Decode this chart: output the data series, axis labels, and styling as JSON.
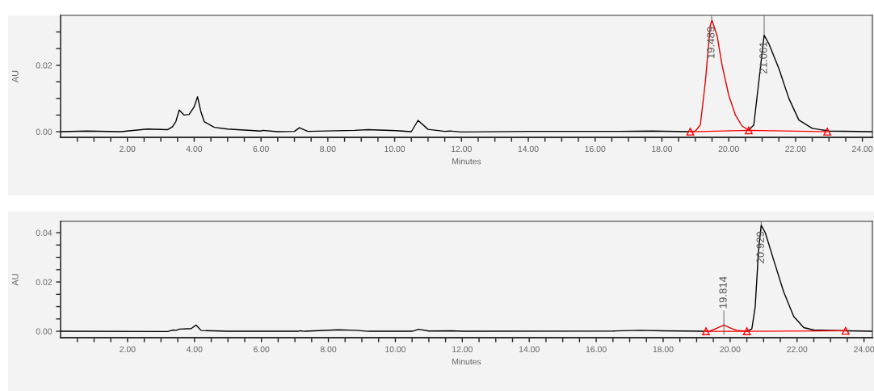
{
  "chart_data": [
    {
      "type": "line",
      "xlabel": "Minutes",
      "ylabel": "AU",
      "xlim": [
        0,
        24.3
      ],
      "ylim": [
        -0.0017,
        0.035
      ],
      "xticks": [
        {
          "value": 0.5,
          "label": null
        },
        {
          "value": 1.0,
          "label": null
        },
        {
          "value": 1.5,
          "label": null
        },
        {
          "value": 2.0,
          "label": "2.00"
        },
        {
          "value": 2.5,
          "label": null
        },
        {
          "value": 3.0,
          "label": null
        },
        {
          "value": 3.5,
          "label": null
        },
        {
          "value": 4.0,
          "label": "4.00"
        },
        {
          "value": 4.5,
          "label": null
        },
        {
          "value": 5.0,
          "label": null
        },
        {
          "value": 5.5,
          "label": null
        },
        {
          "value": 6.0,
          "label": "6.00"
        },
        {
          "value": 6.5,
          "label": null
        },
        {
          "value": 7.0,
          "label": null
        },
        {
          "value": 7.5,
          "label": null
        },
        {
          "value": 8.0,
          "label": "8.00"
        },
        {
          "value": 8.5,
          "label": null
        },
        {
          "value": 9.0,
          "label": null
        },
        {
          "value": 9.5,
          "label": null
        },
        {
          "value": 10.0,
          "label": "10.00"
        },
        {
          "value": 10.5,
          "label": null
        },
        {
          "value": 11.0,
          "label": null
        },
        {
          "value": 11.5,
          "label": null
        },
        {
          "value": 12.0,
          "label": "12.00"
        },
        {
          "value": 12.5,
          "label": null
        },
        {
          "value": 13.0,
          "label": null
        },
        {
          "value": 13.5,
          "label": null
        },
        {
          "value": 14.0,
          "label": "14.00"
        },
        {
          "value": 14.5,
          "label": null
        },
        {
          "value": 15.0,
          "label": null
        },
        {
          "value": 15.5,
          "label": null
        },
        {
          "value": 16.0,
          "label": "16.00"
        },
        {
          "value": 16.5,
          "label": null
        },
        {
          "value": 17.0,
          "label": null
        },
        {
          "value": 17.5,
          "label": null
        },
        {
          "value": 18.0,
          "label": "18.00"
        },
        {
          "value": 18.5,
          "label": null
        },
        {
          "value": 19.0,
          "label": null
        },
        {
          "value": 19.5,
          "label": null
        },
        {
          "value": 20.0,
          "label": "20.00"
        },
        {
          "value": 20.5,
          "label": null
        },
        {
          "value": 21.0,
          "label": null
        },
        {
          "value": 21.5,
          "label": null
        },
        {
          "value": 22.0,
          "label": "22.00"
        },
        {
          "value": 22.5,
          "label": null
        },
        {
          "value": 23.0,
          "label": null
        },
        {
          "value": 23.5,
          "label": null
        },
        {
          "value": 24.0,
          "label": "24.00"
        }
      ],
      "yticks": [
        {
          "value": 0.0,
          "label": "0.00"
        },
        {
          "value": 0.005,
          "label": null
        },
        {
          "value": 0.01,
          "label": null
        },
        {
          "value": 0.015,
          "label": null
        },
        {
          "value": 0.02,
          "label": "0.02"
        },
        {
          "value": 0.025,
          "label": null
        },
        {
          "value": 0.03,
          "label": null
        }
      ],
      "grid": false,
      "legend": false,
      "series": [
        {
          "color": "#000000",
          "x": [
            0,
            0.8,
            1.8,
            2.6,
            3.2,
            3.35,
            3.45,
            3.55,
            3.7,
            3.85,
            4.0,
            4.1,
            4.2,
            4.3,
            4.6,
            5.0,
            6.0,
            6.05,
            6.5,
            7.0,
            7.15,
            7.4,
            8.8,
            9.2,
            10.05,
            10.5,
            10.7,
            11.0,
            11.5,
            11.65,
            12.0,
            14.0,
            16.7,
            17.7,
            18.8,
            19.5,
            20.6,
            20.75,
            20.9,
            21.06,
            21.2,
            21.5,
            21.8,
            22.1,
            22.5,
            23.0,
            24.3
          ],
          "values": [
            0.0,
            0.0002,
            0.0,
            0.0008,
            0.0006,
            0.0015,
            0.003,
            0.0065,
            0.005,
            0.0052,
            0.0075,
            0.0105,
            0.006,
            0.003,
            0.0013,
            0.0008,
            0.0002,
            0.0004,
            0.0,
            0.0001,
            0.0012,
            0.0001,
            0.0004,
            0.0006,
            0.0003,
            0.0,
            0.0034,
            0.0007,
            0.0001,
            0.0002,
            -0.0001,
            0.0001,
            0.0001,
            0.0002,
            0.0,
            null,
            0.0005,
            0.002,
            0.015,
            0.029,
            0.0265,
            0.019,
            0.01,
            0.0035,
            0.001,
            0.0002,
            0.0
          ]
        },
        {
          "color": "#e00000",
          "x": [
            18.85,
            19.0,
            19.15,
            19.3,
            19.45,
            19.5,
            19.65,
            19.8,
            20.0,
            20.2,
            20.4,
            20.6
          ],
          "values": [
            0.0,
            0.0002,
            0.002,
            0.015,
            0.032,
            0.0335,
            0.029,
            0.02,
            0.011,
            0.005,
            0.0017,
            0.0005
          ]
        },
        {
          "color": "#ff0000",
          "marker": "triangle",
          "x": [
            18.85,
            20.6,
            22.95
          ],
          "values": [
            0.0,
            0.0004,
            0.0
          ]
        }
      ],
      "annotations": [
        {
          "text": "19.489",
          "x": 19.489,
          "y": 0.0335
        },
        {
          "text": "21.061",
          "x": 21.061,
          "y": 0.029
        }
      ]
    },
    {
      "type": "line",
      "xlabel": "Minutes",
      "ylabel": "AU",
      "xlim": [
        0,
        24.25
      ],
      "ylim": [
        -0.0026,
        0.0446
      ],
      "xticks": [
        {
          "value": 0.5,
          "label": null
        },
        {
          "value": 1.0,
          "label": null
        },
        {
          "value": 1.5,
          "label": null
        },
        {
          "value": 2.0,
          "label": "2.00"
        },
        {
          "value": 2.5,
          "label": null
        },
        {
          "value": 3.0,
          "label": null
        },
        {
          "value": 3.5,
          "label": null
        },
        {
          "value": 4.0,
          "label": "4.00"
        },
        {
          "value": 4.5,
          "label": null
        },
        {
          "value": 5.0,
          "label": null
        },
        {
          "value": 5.5,
          "label": null
        },
        {
          "value": 6.0,
          "label": "6.00"
        },
        {
          "value": 6.5,
          "label": null
        },
        {
          "value": 7.0,
          "label": null
        },
        {
          "value": 7.5,
          "label": null
        },
        {
          "value": 8.0,
          "label": "8.00"
        },
        {
          "value": 8.5,
          "label": null
        },
        {
          "value": 9.0,
          "label": null
        },
        {
          "value": 9.5,
          "label": null
        },
        {
          "value": 10.0,
          "label": "10.00"
        },
        {
          "value": 10.5,
          "label": null
        },
        {
          "value": 11.0,
          "label": null
        },
        {
          "value": 11.5,
          "label": null
        },
        {
          "value": 12.0,
          "label": "12.00"
        },
        {
          "value": 12.5,
          "label": null
        },
        {
          "value": 13.0,
          "label": null
        },
        {
          "value": 13.5,
          "label": null
        },
        {
          "value": 14.0,
          "label": "14.00"
        },
        {
          "value": 14.5,
          "label": null
        },
        {
          "value": 15.0,
          "label": null
        },
        {
          "value": 15.5,
          "label": null
        },
        {
          "value": 16.0,
          "label": "16.00"
        },
        {
          "value": 16.5,
          "label": null
        },
        {
          "value": 17.0,
          "label": null
        },
        {
          "value": 17.5,
          "label": null
        },
        {
          "value": 18.0,
          "label": "18.00"
        },
        {
          "value": 18.5,
          "label": null
        },
        {
          "value": 19.0,
          "label": null
        },
        {
          "value": 19.5,
          "label": null
        },
        {
          "value": 20.0,
          "label": "20.00"
        },
        {
          "value": 20.5,
          "label": null
        },
        {
          "value": 21.0,
          "label": null
        },
        {
          "value": 21.5,
          "label": null
        },
        {
          "value": 22.0,
          "label": "22.00"
        },
        {
          "value": 22.5,
          "label": null
        },
        {
          "value": 23.0,
          "label": null
        },
        {
          "value": 23.5,
          "label": null
        },
        {
          "value": 24.0,
          "label": "24.00"
        }
      ],
      "yticks": [
        {
          "value": 0.0,
          "label": "0.00"
        },
        {
          "value": 0.005,
          "label": null
        },
        {
          "value": 0.01,
          "label": null
        },
        {
          "value": 0.015,
          "label": null
        },
        {
          "value": 0.02,
          "label": "0.02"
        },
        {
          "value": 0.025,
          "label": null
        },
        {
          "value": 0.03,
          "label": null
        },
        {
          "value": 0.035,
          "label": null
        },
        {
          "value": 0.04,
          "label": "0.04"
        }
      ],
      "grid": false,
      "legend": false,
      "series": [
        {
          "color": "#000000",
          "x": [
            0,
            3.2,
            3.35,
            3.45,
            3.55,
            3.9,
            4.05,
            4.2,
            5.0,
            7.1,
            7.15,
            7.3,
            8.3,
            8.8,
            9.2,
            10.0,
            10.5,
            10.7,
            11.0,
            11.7,
            12.0,
            16.5,
            17.3,
            18.0,
            19.2,
            19.8,
            20.5,
            20.65,
            20.75,
            20.85,
            20.93,
            21.05,
            21.3,
            21.6,
            21.9,
            22.2,
            22.5,
            23.5,
            24.25
          ],
          "values": [
            0.0,
            -0.0001,
            0.0005,
            0.0004,
            0.0009,
            0.0011,
            0.0025,
            0.0003,
            0.0,
            0.0,
            0.0002,
            0.0,
            0.0006,
            0.0004,
            0.0,
            0.0,
            0.0,
            0.0008,
            0.0001,
            0.0002,
            0.0,
            0.0001,
            0.0004,
            0.0002,
            0.0,
            null,
            0.0,
            0.001,
            0.01,
            0.033,
            0.043,
            0.04,
            0.029,
            0.016,
            0.006,
            0.0015,
            0.0005,
            0.0002,
            0.0
          ]
        },
        {
          "color": "#e00000",
          "x": [
            19.25,
            19.4,
            19.6,
            19.814,
            20.0,
            20.2,
            20.5
          ],
          "values": [
            0.0,
            0.0001,
            0.0012,
            0.0025,
            0.0014,
            0.0004,
            0.0
          ]
        },
        {
          "color": "#ff0000",
          "marker": "triangle",
          "x": [
            19.28,
            20.5,
            23.45
          ],
          "values": [
            0.0,
            0.0,
            0.0002
          ]
        }
      ],
      "annotations": [
        {
          "text": "19.814",
          "x": 19.814,
          "y": 0.0025
        },
        {
          "text": "20.929",
          "x": 20.929,
          "y": 0.043
        }
      ]
    }
  ]
}
